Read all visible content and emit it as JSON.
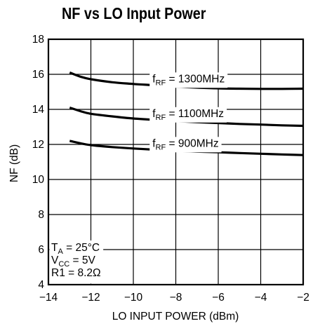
{
  "chart_data": {
    "type": "line",
    "title": "NF vs LO Input Power",
    "xlabel": "LO INPUT POWER (dBm)",
    "ylabel": "NF (dB)",
    "xlim": [
      -14,
      -2
    ],
    "ylim": [
      4,
      18
    ],
    "x_ticks": [
      -14,
      -12,
      -10,
      -8,
      -6,
      -4,
      -2
    ],
    "x_tick_labels": [
      "−14",
      "−12",
      "−10",
      "−8",
      "−6",
      "−4",
      "−2"
    ],
    "y_ticks": [
      4,
      6,
      8,
      10,
      12,
      14,
      16,
      18
    ],
    "y_tick_labels": [
      "4",
      "6",
      "8",
      "10",
      "12",
      "14",
      "16",
      "18"
    ],
    "grid": true,
    "series": [
      {
        "label_main": "f",
        "label_sub": "RF",
        "label_rest": " = 1300MHz",
        "x": [
          -13,
          -12.5,
          -12,
          -11,
          -10,
          -9,
          -8,
          -7,
          -6,
          -5,
          -4,
          -3,
          -2
        ],
        "y": [
          16.1,
          15.87,
          15.72,
          15.55,
          15.45,
          15.38,
          15.3,
          15.24,
          15.2,
          15.18,
          15.17,
          15.17,
          15.18
        ]
      },
      {
        "label_main": "f",
        "label_sub": "RF",
        "label_rest": " = 1100MHz",
        "x": [
          -13,
          -12.5,
          -12,
          -11,
          -10,
          -9,
          -8,
          -7,
          -6,
          -5,
          -4,
          -3,
          -2
        ],
        "y": [
          14.1,
          13.9,
          13.75,
          13.6,
          13.48,
          13.4,
          13.33,
          13.27,
          13.22,
          13.17,
          13.13,
          13.09,
          13.06
        ]
      },
      {
        "label_main": "f",
        "label_sub": "RF",
        "label_rest": " = 900MHz",
        "x": [
          -13,
          -12.5,
          -12,
          -11,
          -10,
          -9,
          -8,
          -7,
          -6,
          -5,
          -4,
          -3,
          -2
        ],
        "y": [
          12.2,
          12.07,
          11.96,
          11.85,
          11.77,
          11.7,
          11.64,
          11.59,
          11.55,
          11.51,
          11.47,
          11.43,
          11.39
        ]
      }
    ],
    "conditions": [
      {
        "main": "T",
        "sub": "A",
        "rest": " = 25°C"
      },
      {
        "main": "V",
        "sub": "CC",
        "rest": " = 5V"
      },
      {
        "main": "R1 = 8.2Ω",
        "sub": "",
        "rest": ""
      }
    ]
  }
}
